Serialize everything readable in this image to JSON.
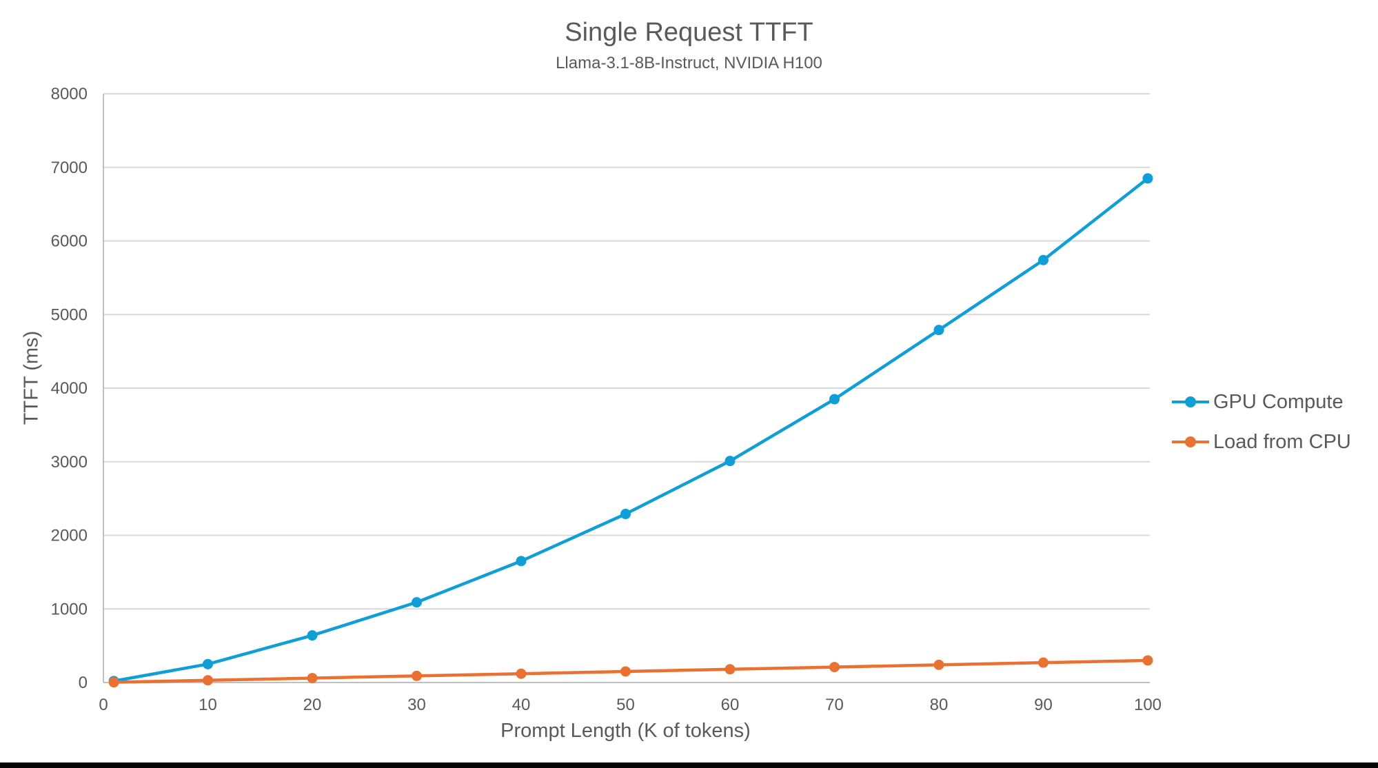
{
  "page": {
    "background": "#FFFFFF",
    "bottom_bar_color": "#060606"
  },
  "chart_data": {
    "type": "line",
    "title": "Single Request TTFT",
    "subtitle": "Llama-3.1-8B-Instruct, NVIDIA H100",
    "xlabel": "Prompt Length (K of tokens)",
    "ylabel": "TTFT (ms)",
    "x": [
      1,
      10,
      20,
      30,
      40,
      50,
      60,
      70,
      80,
      90,
      100
    ],
    "series": [
      {
        "name": "GPU Compute",
        "color": "#0F9ED5",
        "values": [
          20,
          250,
          640,
          1090,
          1650,
          2290,
          3010,
          3850,
          4790,
          5740,
          6850
        ]
      },
      {
        "name": "Load from CPU",
        "color": "#E97132",
        "values": [
          3,
          30,
          60,
          90,
          120,
          150,
          180,
          210,
          240,
          270,
          300
        ]
      }
    ],
    "xlim": [
      0,
      100
    ],
    "ylim": [
      0,
      8000
    ],
    "xticks": [
      0,
      10,
      20,
      30,
      40,
      50,
      60,
      70,
      80,
      90,
      100
    ],
    "yticks": [
      0,
      1000,
      2000,
      3000,
      4000,
      5000,
      6000,
      7000,
      8000
    ],
    "grid": "horizontal",
    "legend_position": "right-middle",
    "marker": "circle",
    "colors": {
      "grid": "#D9D9D9",
      "axis": "#BFBFBF",
      "text": "#595959"
    }
  }
}
